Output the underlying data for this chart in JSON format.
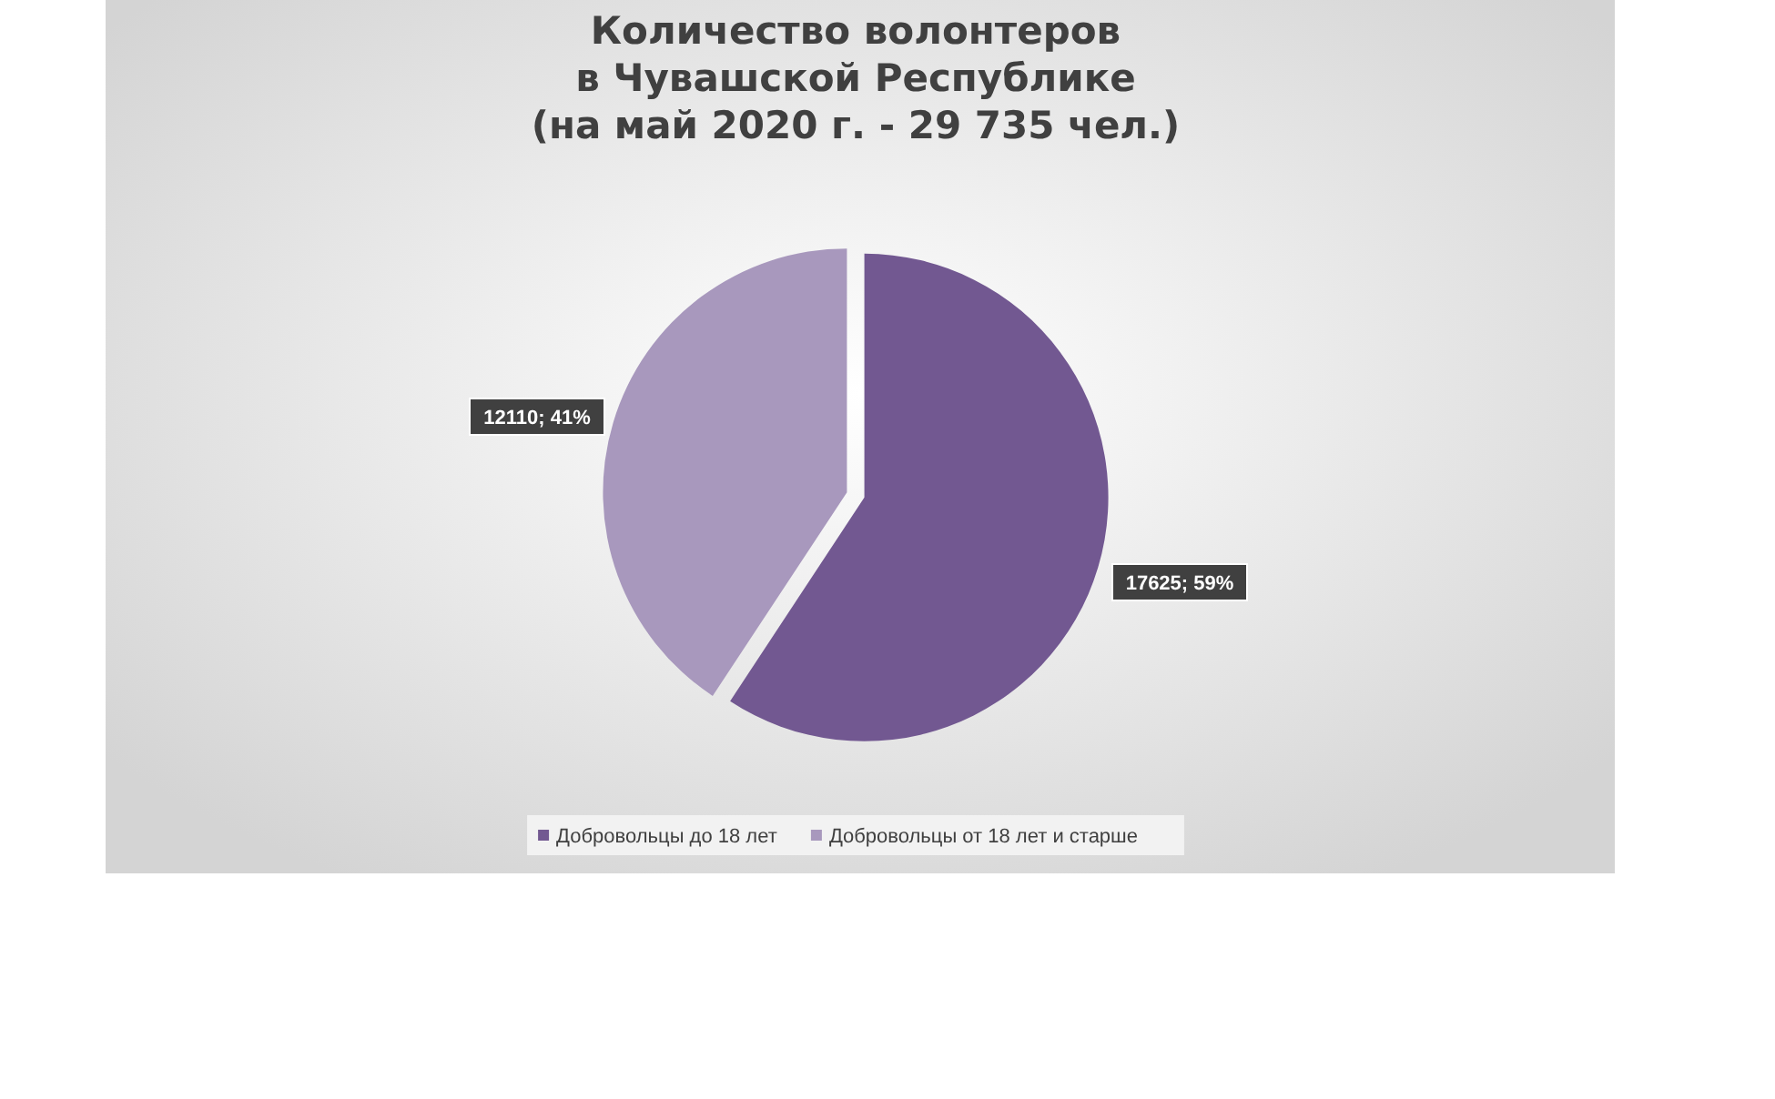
{
  "chart_data": {
    "type": "pie",
    "title": "Количество волонтеров\nв Чувашской Республике\n(на май 2020 г. - 29 735 чел.)",
    "categories": [
      "Добровольцы до 18 лет",
      "Добровольцы от 18 лет и старше"
    ],
    "values": [
      17625,
      12110
    ],
    "colors": [
      "#725891",
      "#a898bd"
    ],
    "value_labels": [
      "17625; 59%",
      "12110; 41%"
    ],
    "legend": "bottom"
  }
}
